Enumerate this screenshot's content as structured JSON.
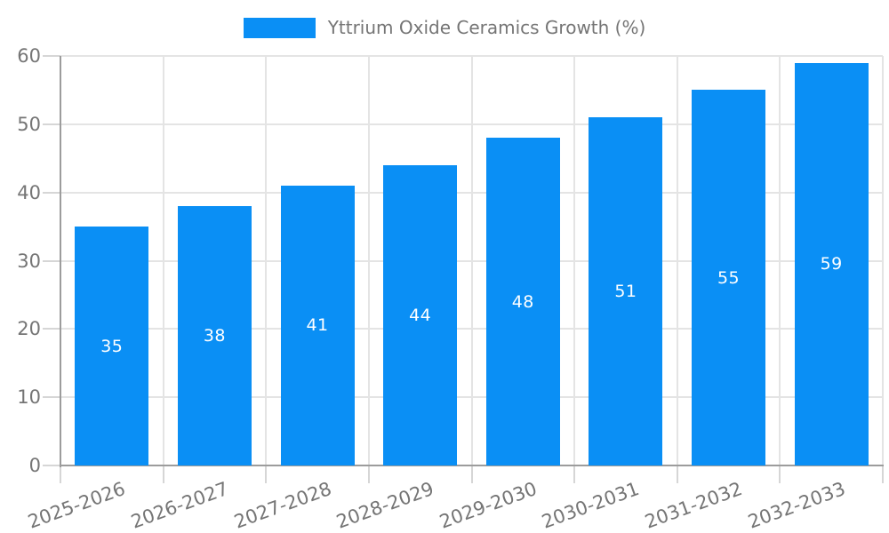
{
  "legend": {
    "label": "Yttrium Oxide Ceramics Growth (%)"
  },
  "colors": {
    "bar": "#0a8ff5",
    "grid": "#e4e4e4",
    "tick": "#d6d6d6",
    "axis": "#9c9c9c",
    "tick_label_text": "#757575",
    "legend_text": "#757575",
    "bar_label_text": "#ffffff",
    "background": "#ffffff"
  },
  "chart_data": {
    "type": "bar",
    "title": "",
    "xlabel": "",
    "ylabel": "",
    "categories": [
      "2025-2026",
      "2026-2027",
      "2027-2028",
      "2028-2029",
      "2029-2030",
      "2030-2031",
      "2031-2032",
      "2032-2033"
    ],
    "series": [
      {
        "name": "Yttrium Oxide Ceramics Growth (%)",
        "values": [
          35,
          38,
          41,
          44,
          48,
          51,
          55,
          59
        ]
      }
    ],
    "bar_value_labels": [
      "35",
      "38",
      "41",
      "44",
      "48",
      "51",
      "55",
      "59"
    ],
    "ylim": [
      0,
      60
    ],
    "yticks": [
      0,
      10,
      20,
      30,
      40,
      50,
      60
    ],
    "grid": true,
    "vertical_gridlines": true,
    "legend_position": "top-center",
    "value_label_position": "center-of-bar",
    "xtick_label_rotation_deg": -20
  }
}
